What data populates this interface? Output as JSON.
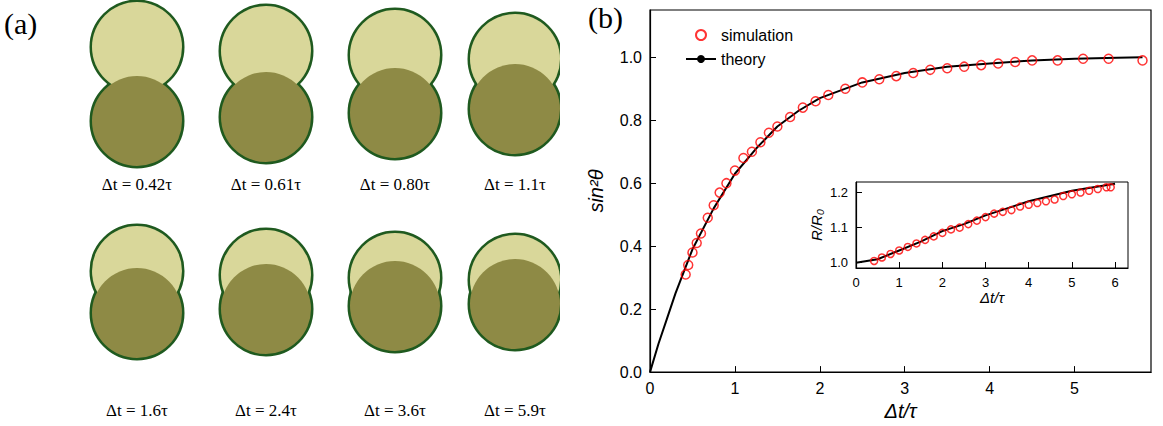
{
  "panel_a": {
    "label": "(a)",
    "frames": [
      "Δt = 0.42τ",
      "Δt = 0.61τ",
      "Δt = 0.80τ",
      "Δt = 1.1τ",
      "Δt = 1.6τ",
      "Δt = 2.4τ",
      "Δt = 3.6τ",
      "Δt = 5.9τ"
    ]
  },
  "chart_data": [
    {
      "panel_label": "(b)",
      "type": "scatter",
      "x_label": "Δt/τ",
      "y_label": "sin²θ",
      "xlim": [
        0,
        5.9
      ],
      "xticks": [
        0,
        1,
        2,
        3,
        4,
        5
      ],
      "ylim": [
        0,
        1.15
      ],
      "yticks": [
        {
          "value": 0,
          "label": "0.0"
        },
        0.2,
        0.4,
        0.6,
        0.8,
        {
          "value": 1,
          "label": "1.0"
        }
      ],
      "legend": "upper left",
      "grid": false,
      "series": [
        {
          "name": "simulation",
          "type": "scatter",
          "color": "#ff0000",
          "marker": "open_circle",
          "x": [
            0.42,
            0.45,
            0.5,
            0.55,
            0.6,
            0.68,
            0.75,
            0.82,
            0.9,
            1.0,
            1.1,
            1.2,
            1.3,
            1.4,
            1.5,
            1.65,
            1.8,
            1.95,
            2.1,
            2.3,
            2.5,
            2.7,
            2.9,
            3.1,
            3.3,
            3.5,
            3.7,
            3.9,
            4.1,
            4.3,
            4.5,
            4.8,
            5.1,
            5.4,
            5.8
          ],
          "values": [
            0.31,
            0.34,
            0.38,
            0.41,
            0.44,
            0.49,
            0.53,
            0.57,
            0.6,
            0.64,
            0.68,
            0.7,
            0.73,
            0.76,
            0.78,
            0.81,
            0.84,
            0.86,
            0.88,
            0.9,
            0.92,
            0.93,
            0.94,
            0.95,
            0.96,
            0.965,
            0.97,
            0.975,
            0.98,
            0.985,
            0.99,
            0.99,
            0.995,
            0.995,
            0.99
          ]
        },
        {
          "name": "theory",
          "type": "line",
          "color": "#000000",
          "line_style": "solid",
          "x": [
            0,
            0.1,
            0.2,
            0.3,
            0.5,
            0.75,
            1,
            1.25,
            1.5,
            1.75,
            2,
            2.5,
            3,
            3.5,
            4,
            4.5,
            5,
            5.5,
            5.8
          ],
          "values": [
            0,
            0.09,
            0.17,
            0.25,
            0.39,
            0.52,
            0.63,
            0.71,
            0.78,
            0.83,
            0.87,
            0.92,
            0.95,
            0.97,
            0.98,
            0.99,
            0.995,
            0.998,
            1.0
          ]
        }
      ]
    },
    {
      "type": "scatter",
      "x_label": "Δt/τ",
      "y_label": "R/R₀",
      "xlim": [
        0,
        6.3
      ],
      "xticks": [
        0,
        1,
        2,
        3,
        4,
        5,
        6
      ],
      "ylim": [
        0.985,
        1.23
      ],
      "yticks": [
        {
          "value": 1,
          "label": "1.0"
        },
        1.1,
        1.2
      ],
      "grid": false,
      "series": [
        {
          "type": "scatter",
          "color": "#ff0000",
          "marker": "open_circle",
          "x": [
            0.42,
            0.6,
            0.8,
            1.0,
            1.2,
            1.4,
            1.6,
            1.8,
            2.0,
            2.2,
            2.4,
            2.6,
            2.8,
            3.0,
            3.2,
            3.4,
            3.6,
            3.8,
            4.0,
            4.2,
            4.4,
            4.6,
            4.8,
            5.0,
            5.2,
            5.4,
            5.6,
            5.8,
            5.9
          ],
          "values": [
            1.005,
            1.015,
            1.025,
            1.035,
            1.045,
            1.055,
            1.065,
            1.075,
            1.085,
            1.095,
            1.1,
            1.11,
            1.12,
            1.13,
            1.14,
            1.145,
            1.15,
            1.16,
            1.165,
            1.17,
            1.175,
            1.18,
            1.19,
            1.195,
            1.2,
            1.205,
            1.21,
            1.215,
            1.215
          ]
        },
        {
          "type": "line",
          "color": "#000000",
          "line_style": "solid",
          "x": [
            0,
            0.5,
            1,
            1.5,
            2,
            2.5,
            3,
            3.5,
            4,
            4.5,
            5,
            5.5,
            6
          ],
          "values": [
            1.0,
            1.01,
            1.035,
            1.06,
            1.09,
            1.11,
            1.135,
            1.155,
            1.175,
            1.19,
            1.205,
            1.215,
            1.225
          ]
        }
      ]
    }
  ]
}
